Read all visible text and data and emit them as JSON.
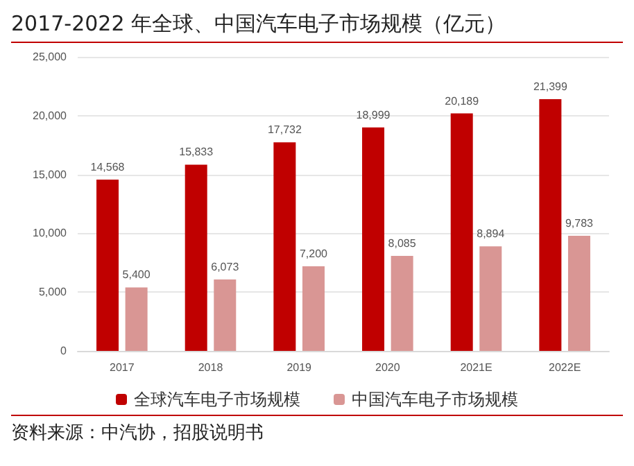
{
  "chart_data": {
    "type": "bar",
    "title": "2017-2022 年全球、中国汽车电子市场规模（亿元）",
    "categories": [
      "2017",
      "2018",
      "2019",
      "2020",
      "2021E",
      "2022E"
    ],
    "series": [
      {
        "name": "全球汽车电子市场规模",
        "color": "#c00000",
        "values": [
          14568,
          15833,
          17732,
          18999,
          20189,
          21399
        ],
        "value_labels": [
          "14,568",
          "15,833",
          "17,732",
          "18,999",
          "20,189",
          "21,399"
        ]
      },
      {
        "name": "中国汽车电子市场规模",
        "color": "#d99694",
        "values": [
          5400,
          6073,
          7200,
          8085,
          8894,
          9783
        ],
        "value_labels": [
          "5,400",
          "6,073",
          "7,200",
          "8,085",
          "8,894",
          "9,783"
        ]
      }
    ],
    "ylim": [
      0,
      25000
    ],
    "yticks": [
      0,
      {
        "value": 5000,
        "label": "5,000"
      },
      {
        "value": 10000,
        "label": "10,000"
      },
      {
        "value": 15000,
        "label": "15,000"
      },
      {
        "value": 20000,
        "label": "20,000"
      },
      {
        "value": 25000,
        "label": "25,000"
      }
    ],
    "grid": "y",
    "legend": "bottom",
    "annotations": [
      "资料来源：中汽协，招股说明书"
    ]
  }
}
